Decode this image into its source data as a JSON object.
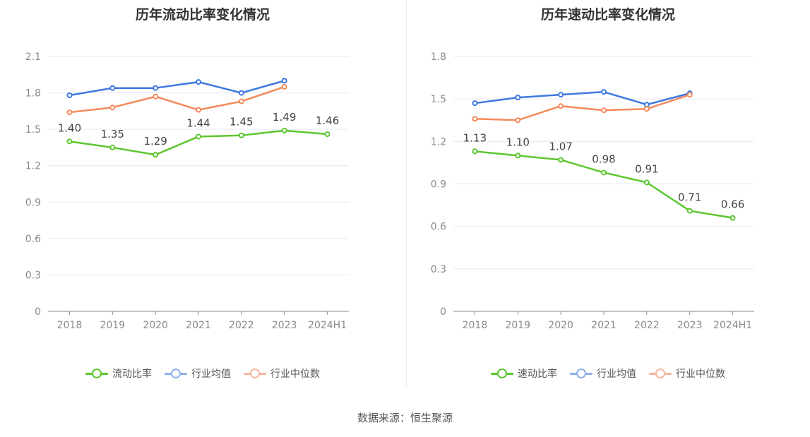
{
  "chart_data": [
    {
      "type": "line",
      "title": "历年流动比率变化情况",
      "categories": [
        "2018",
        "2019",
        "2020",
        "2021",
        "2022",
        "2023",
        "2024H1"
      ],
      "ylim": [
        0,
        2.1
      ],
      "yticks": [
        "0",
        "0.3",
        "0.6",
        "0.9",
        "1.2",
        "1.5",
        "1.8",
        "2.1"
      ],
      "grid": true,
      "legend_position": "bottom",
      "series": [
        {
          "name": "流动比率",
          "color": "#5cc72f",
          "show_labels": true,
          "values": [
            1.4,
            1.35,
            1.29,
            1.44,
            1.45,
            1.49,
            1.46
          ],
          "labels": [
            "1.40",
            "1.35",
            "1.29",
            "1.44",
            "1.45",
            "1.49",
            "1.46"
          ]
        },
        {
          "name": "行业均值",
          "color": "#3f78e0",
          "show_labels": false,
          "values": [
            1.78,
            1.84,
            1.84,
            1.89,
            1.8,
            1.9,
            null
          ]
        },
        {
          "name": "行业中位数",
          "color": "#f5895b",
          "show_labels": false,
          "values": [
            1.64,
            1.68,
            1.77,
            1.66,
            1.73,
            1.85,
            null
          ]
        }
      ]
    },
    {
      "type": "line",
      "title": "历年速动比率变化情况",
      "categories": [
        "2018",
        "2019",
        "2020",
        "2021",
        "2022",
        "2023",
        "2024H1"
      ],
      "ylim": [
        0,
        1.8
      ],
      "yticks": [
        "0",
        "0.3",
        "0.6",
        "0.9",
        "1.2",
        "1.5",
        "1.8"
      ],
      "grid": true,
      "legend_position": "bottom",
      "series": [
        {
          "name": "速动比率",
          "color": "#5cc72f",
          "show_labels": true,
          "values": [
            1.13,
            1.1,
            1.07,
            0.98,
            0.91,
            0.71,
            0.66
          ],
          "labels": [
            "1.13",
            "1.10",
            "1.07",
            "0.98",
            "0.91",
            "0.71",
            "0.66"
          ]
        },
        {
          "name": "行业均值",
          "color": "#3f78e0",
          "show_labels": false,
          "values": [
            1.47,
            1.51,
            1.53,
            1.55,
            1.46,
            1.54,
            null
          ]
        },
        {
          "name": "行业中位数",
          "color": "#f5895b",
          "show_labels": false,
          "values": [
            1.36,
            1.35,
            1.45,
            1.42,
            1.43,
            1.53,
            null
          ]
        }
      ]
    }
  ],
  "legend_colors": {
    "primary": "#5cc72f",
    "mean": "#8fb0ec",
    "median": "#f6b79c"
  },
  "source": "数据来源：恒生聚源"
}
